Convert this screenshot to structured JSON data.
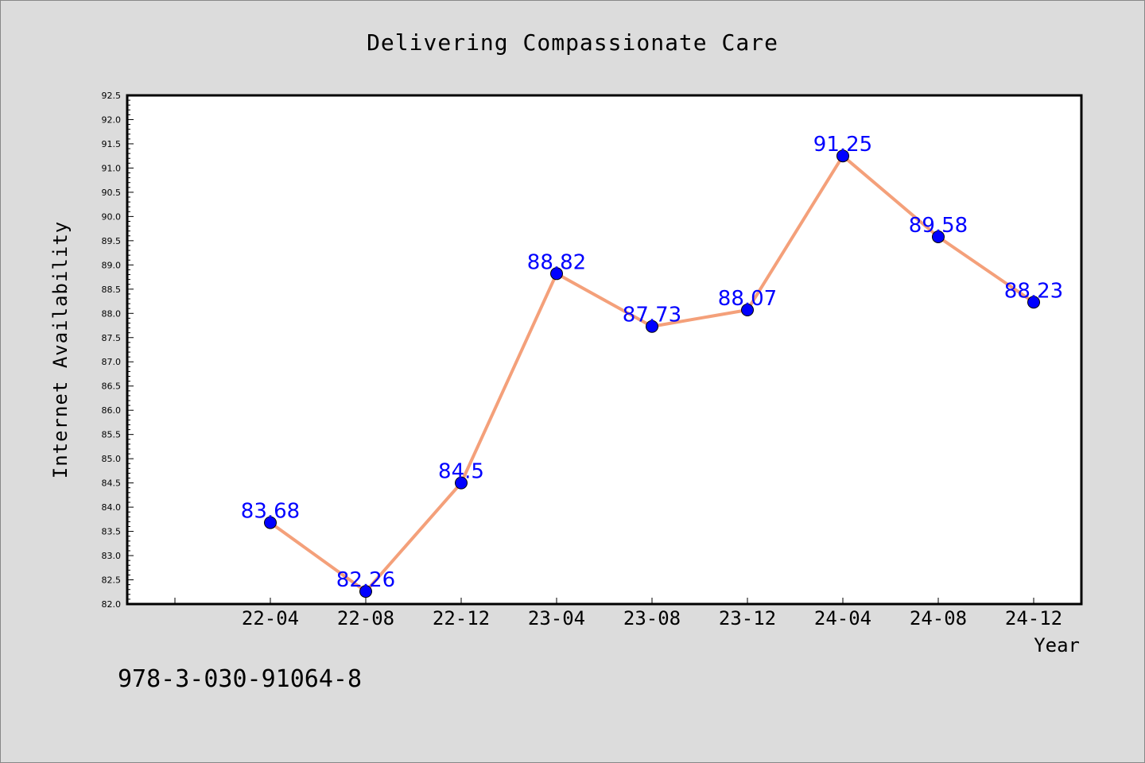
{
  "chart_data": {
    "type": "line",
    "title": "Delivering Compassionate Care",
    "xlabel": "Year",
    "ylabel": "Internet Availability",
    "categories": [
      "22-04",
      "22-08",
      "22-12",
      "23-04",
      "23-08",
      "23-12",
      "24-04",
      "24-08",
      "24-12"
    ],
    "y_tick_labels": [
      "82.0",
      "82.5",
      "83.0",
      "83.5",
      "84.0",
      "84.5",
      "85.0",
      "85.5",
      "86.0",
      "86.5",
      "87.0",
      "87.5",
      "88.0",
      "88.5",
      "89.0",
      "89.5",
      "90.0",
      "90.5",
      "91.0",
      "91.5",
      "92.0",
      "92.5"
    ],
    "series": [
      {
        "values": [
          83.68,
          82.26,
          84.5,
          88.82,
          87.73,
          88.07,
          91.25,
          89.58,
          88.23
        ],
        "data_labels": [
          "83.68",
          "82.26",
          "84.5",
          "88.82",
          "87.73",
          "88.07",
          "91.25",
          "89.58",
          "88.23"
        ],
        "line_color": "#f4a07a",
        "marker_color": "#0000ff"
      }
    ],
    "ylim": [
      82.0,
      92.5
    ],
    "grid": false,
    "legend": "none"
  },
  "annotation": "978-3-030-91064-8"
}
